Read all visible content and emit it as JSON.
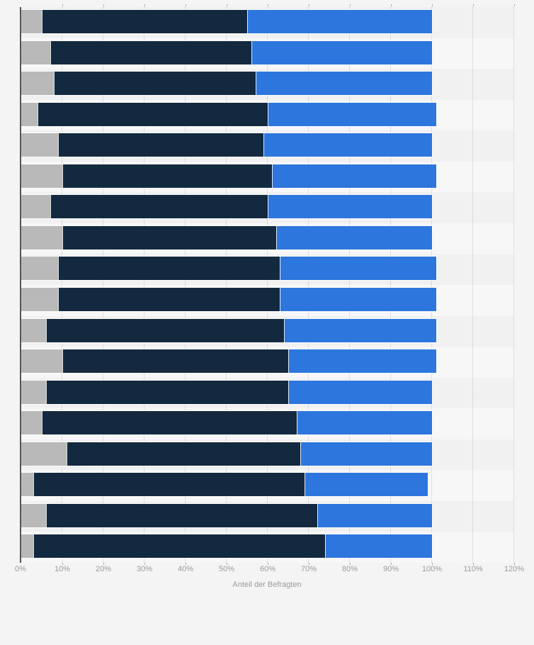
{
  "page": {
    "background": "#f4f4f4"
  },
  "chart_data": {
    "type": "bar",
    "orientation": "horizontal",
    "stacked": true,
    "num_rows": 18,
    "categories": [
      "",
      "",
      "",
      "",
      "",
      "",
      "",
      "",
      "",
      "",
      "",
      "",
      "",
      "",
      "",
      "",
      "",
      ""
    ],
    "series": [
      {
        "name": "segment-gray",
        "color": "#b9b9b9",
        "values": [
          5,
          7,
          8,
          4,
          9,
          10,
          7,
          10,
          9,
          9,
          6,
          10,
          6,
          5,
          11,
          3,
          6,
          3
        ]
      },
      {
        "name": "segment-darkblue",
        "color": "#13293f",
        "values": [
          50,
          49,
          49,
          56,
          50,
          51,
          53,
          52,
          54,
          54,
          58,
          55,
          59,
          62,
          57,
          66,
          66,
          71
        ]
      },
      {
        "name": "segment-blue",
        "color": "#2d76dd",
        "values": [
          45,
          44,
          43,
          41,
          41,
          40,
          40,
          38,
          38,
          38,
          37,
          36,
          35,
          33,
          32,
          30,
          28,
          26
        ]
      }
    ],
    "row_totals": [
      100,
      100,
      100,
      101,
      100,
      101,
      100,
      100,
      101,
      101,
      101,
      101,
      100,
      100,
      100,
      99,
      100,
      100
    ],
    "title": "",
    "xlabel": "Anteil der Befragten",
    "ylabel": "",
    "xlim": [
      0,
      120
    ],
    "x_tick_step": 10,
    "x_tick_labels": [
      "0%",
      "10%",
      "20%",
      "30%",
      "40%",
      "50%",
      "60%",
      "70%",
      "80%",
      "90%",
      "100%",
      "110%",
      "120%"
    ],
    "grid": "vertical-dotted",
    "legend": "none",
    "row_stripe_colors": [
      "#f1f1f1",
      "#f7f7f7"
    ],
    "axis_color": "#555555",
    "grid_color": "#c6c6c6",
    "tick_label_color": "#9b9b9b"
  }
}
